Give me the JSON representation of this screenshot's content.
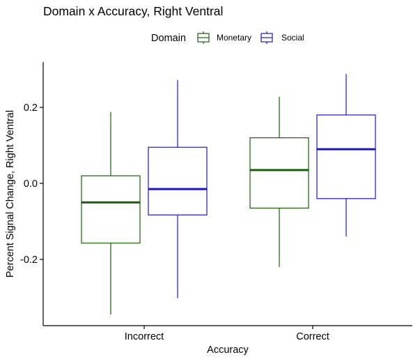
{
  "chart_data": {
    "type": "boxplot",
    "title": "Domain x Accuracy, Right Ventral",
    "xlabel": "Accuracy",
    "ylabel": "Percent Signal Change, Right Ventral",
    "categories": [
      "Incorrect",
      "Correct"
    ],
    "ylim": [
      -0.345,
      0.32
    ],
    "yticks": [
      -0.2,
      0.0,
      0.2
    ],
    "ytick_labels": [
      "-0.2",
      "0.0",
      "0.2"
    ],
    "grid": false,
    "legend": {
      "title": "Domain",
      "placement": "top"
    },
    "series": [
      {
        "name": "Monetary",
        "color": "#1a5e0a",
        "boxes": [
          {
            "category": "Incorrect",
            "whisker_low": -0.345,
            "q1": -0.157,
            "median": -0.05,
            "q3": 0.02,
            "whisker_high": 0.188
          },
          {
            "category": "Correct",
            "whisker_low": -0.22,
            "q1": -0.065,
            "median": 0.035,
            "q3": 0.12,
            "whisker_high": 0.228
          }
        ]
      },
      {
        "name": "Social",
        "color": "#1a14c8",
        "boxes": [
          {
            "category": "Incorrect",
            "whisker_low": -0.302,
            "q1": -0.083,
            "median": -0.015,
            "q3": 0.095,
            "whisker_high": 0.272
          },
          {
            "category": "Correct",
            "whisker_low": -0.14,
            "q1": -0.04,
            "median": 0.09,
            "q3": 0.18,
            "whisker_high": 0.288
          }
        ]
      }
    ]
  }
}
